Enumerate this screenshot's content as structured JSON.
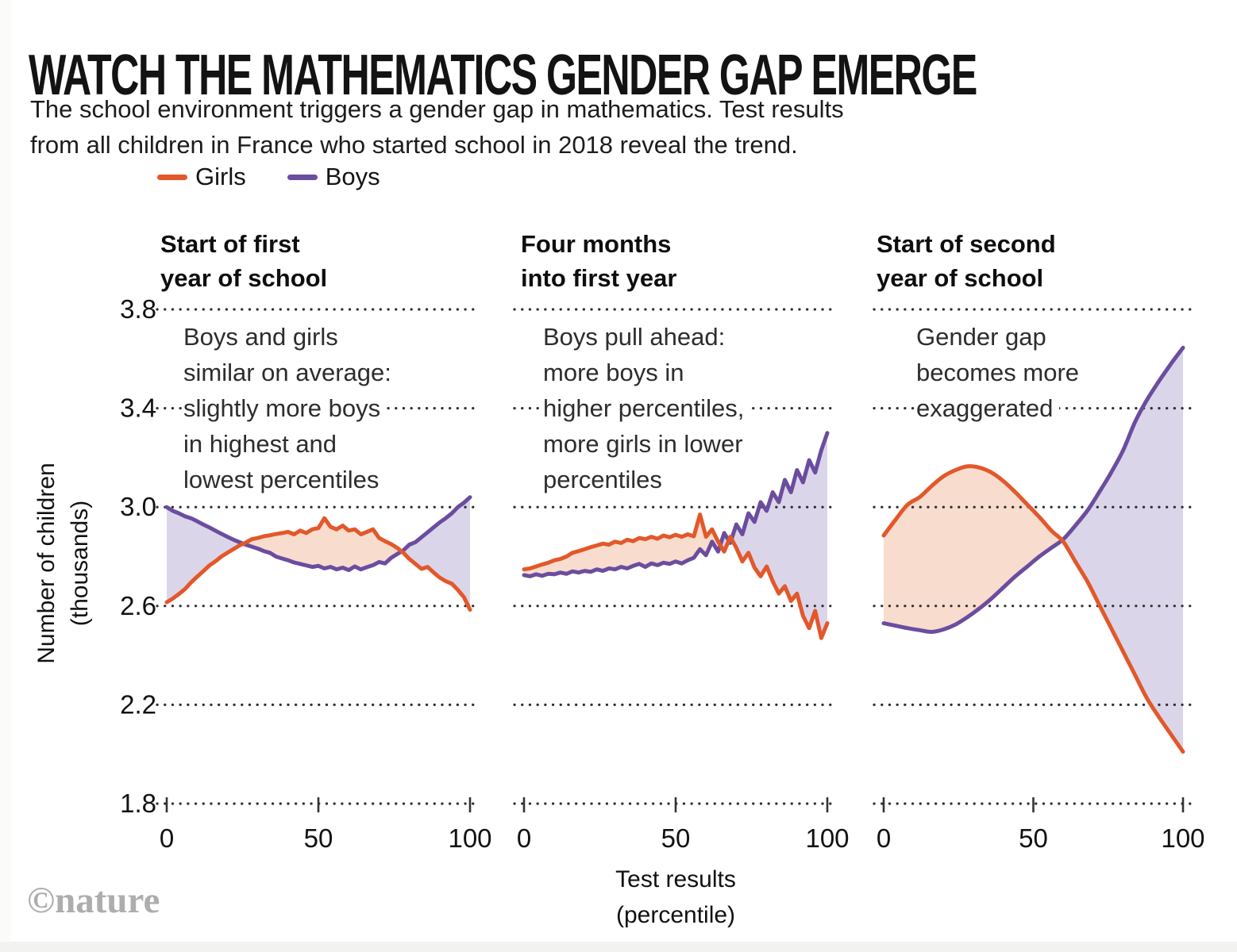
{
  "header": {
    "title": "WATCH THE MATHEMATICS GENDER GAP EMERGE",
    "subtitle": "The school environment triggers a gender gap in mathematics. Test results\nfrom all children in France who started school in 2018 reveal the trend."
  },
  "legend": {
    "items": [
      {
        "label": "Girls",
        "color": "#E2582A"
      },
      {
        "label": "Boys",
        "color": "#6B4D9F"
      }
    ]
  },
  "footer": {
    "credit": "©nature"
  },
  "chart_data": {
    "type": "line",
    "title": "",
    "xlabel": "Test results\n(percentile)",
    "ylabel": "Number of children\n(thousands)",
    "ylim": [
      1.8,
      3.8
    ],
    "xlim": [
      0,
      100
    ],
    "grid": "dotted-horizontal",
    "legend_position": "top-left",
    "y_ticks": {
      "values": [
        3.8,
        3.4,
        3.0,
        2.6,
        2.2,
        1.8
      ],
      "labels": [
        "3.8",
        "3.4",
        "3.0",
        "2.6",
        "2.2",
        "1.8"
      ]
    },
    "x_ticks": {
      "values": [
        0,
        50,
        100
      ],
      "labels": [
        "0",
        "50",
        "100"
      ]
    },
    "series_colors": {
      "Girls": "#E2582A",
      "Boys": "#6B4D9F"
    },
    "fill_colors": {
      "girls_above": "#F8DCCE",
      "boys_above": "#DBD5E9"
    },
    "panels": [
      {
        "title": "Start of first\nyear of school",
        "annotation": "Boys and girls\nsimilar on average:\nslightly more boys\nin highest and\nlowest percentiles",
        "style": "jagged",
        "x": [
          0,
          2,
          4,
          6,
          8,
          10,
          12,
          14,
          16,
          18,
          20,
          22,
          24,
          26,
          28,
          30,
          32,
          34,
          36,
          38,
          40,
          42,
          44,
          46,
          48,
          50,
          52,
          54,
          56,
          58,
          60,
          62,
          64,
          66,
          68,
          70,
          72,
          74,
          76,
          78,
          80,
          82,
          84,
          86,
          88,
          90,
          92,
          94,
          96,
          98,
          100
        ],
        "girls": [
          2.615,
          2.63,
          2.648,
          2.668,
          2.695,
          2.718,
          2.74,
          2.763,
          2.78,
          2.8,
          2.815,
          2.83,
          2.845,
          2.856,
          2.87,
          2.875,
          2.882,
          2.886,
          2.891,
          2.895,
          2.9,
          2.89,
          2.905,
          2.895,
          2.91,
          2.915,
          2.955,
          2.92,
          2.91,
          2.925,
          2.905,
          2.91,
          2.89,
          2.9,
          2.91,
          2.875,
          2.862,
          2.85,
          2.835,
          2.815,
          2.79,
          2.77,
          2.75,
          2.758,
          2.735,
          2.715,
          2.7,
          2.69,
          2.665,
          2.635,
          2.585
        ],
        "boys": [
          3.0,
          2.985,
          2.975,
          2.963,
          2.955,
          2.943,
          2.93,
          2.918,
          2.905,
          2.892,
          2.88,
          2.868,
          2.858,
          2.848,
          2.84,
          2.832,
          2.822,
          2.815,
          2.8,
          2.792,
          2.785,
          2.776,
          2.77,
          2.764,
          2.758,
          2.762,
          2.752,
          2.758,
          2.748,
          2.755,
          2.745,
          2.76,
          2.748,
          2.757,
          2.765,
          2.778,
          2.772,
          2.795,
          2.81,
          2.825,
          2.848,
          2.858,
          2.878,
          2.898,
          2.918,
          2.938,
          2.955,
          2.975,
          3.0,
          3.018,
          3.04
        ]
      },
      {
        "title": "Four months\ninto first year",
        "annotation": "Boys pull ahead:\nmore boys in\nhigher percentiles,\nmore girls in lower\npercentiles",
        "style": "jagged",
        "x": [
          0,
          2,
          4,
          6,
          8,
          10,
          12,
          14,
          16,
          18,
          20,
          22,
          24,
          26,
          28,
          30,
          32,
          34,
          36,
          38,
          40,
          42,
          44,
          46,
          48,
          50,
          52,
          54,
          56,
          58,
          60,
          62,
          64,
          66,
          68,
          70,
          72,
          74,
          76,
          78,
          80,
          82,
          84,
          86,
          88,
          90,
          92,
          94,
          96,
          98,
          100
        ],
        "girls": [
          2.748,
          2.752,
          2.76,
          2.768,
          2.775,
          2.785,
          2.79,
          2.8,
          2.815,
          2.822,
          2.83,
          2.838,
          2.845,
          2.852,
          2.848,
          2.86,
          2.855,
          2.868,
          2.862,
          2.875,
          2.87,
          2.88,
          2.872,
          2.885,
          2.878,
          2.888,
          2.88,
          2.89,
          2.882,
          2.97,
          2.88,
          2.91,
          2.86,
          2.82,
          2.88,
          2.835,
          2.78,
          2.815,
          2.755,
          2.72,
          2.76,
          2.7,
          2.65,
          2.68,
          2.62,
          2.65,
          2.56,
          2.51,
          2.58,
          2.47,
          2.53
        ],
        "boys": [
          2.725,
          2.72,
          2.728,
          2.722,
          2.73,
          2.728,
          2.735,
          2.73,
          2.74,
          2.735,
          2.742,
          2.738,
          2.748,
          2.742,
          2.752,
          2.748,
          2.758,
          2.752,
          2.762,
          2.77,
          2.758,
          2.772,
          2.765,
          2.775,
          2.77,
          2.78,
          2.772,
          2.785,
          2.795,
          2.83,
          2.805,
          2.86,
          2.82,
          2.895,
          2.855,
          2.93,
          2.89,
          2.975,
          2.94,
          3.02,
          2.985,
          3.06,
          3.02,
          3.11,
          3.06,
          3.15,
          3.1,
          3.19,
          3.14,
          3.23,
          3.3
        ]
      },
      {
        "title": "Start of second\nyear of school",
        "annotation": "Gender gap\nbecomes more\nexaggerated",
        "style": "smooth",
        "x": [
          0,
          4,
          8,
          12,
          16,
          20,
          24,
          28,
          32,
          36,
          40,
          44,
          48,
          52,
          56,
          60,
          64,
          68,
          72,
          76,
          80,
          84,
          88,
          92,
          96,
          100
        ],
        "girls": [
          2.885,
          2.95,
          3.01,
          3.04,
          3.085,
          3.125,
          3.15,
          3.165,
          3.16,
          3.14,
          3.105,
          3.06,
          3.01,
          2.96,
          2.905,
          2.86,
          2.78,
          2.7,
          2.605,
          2.51,
          2.415,
          2.32,
          2.225,
          2.15,
          2.08,
          2.01
        ],
        "boys": [
          2.53,
          2.52,
          2.51,
          2.502,
          2.495,
          2.505,
          2.525,
          2.555,
          2.59,
          2.63,
          2.675,
          2.72,
          2.76,
          2.8,
          2.835,
          2.87,
          2.925,
          2.985,
          3.06,
          3.14,
          3.23,
          3.345,
          3.435,
          3.51,
          3.58,
          3.645
        ]
      }
    ]
  }
}
